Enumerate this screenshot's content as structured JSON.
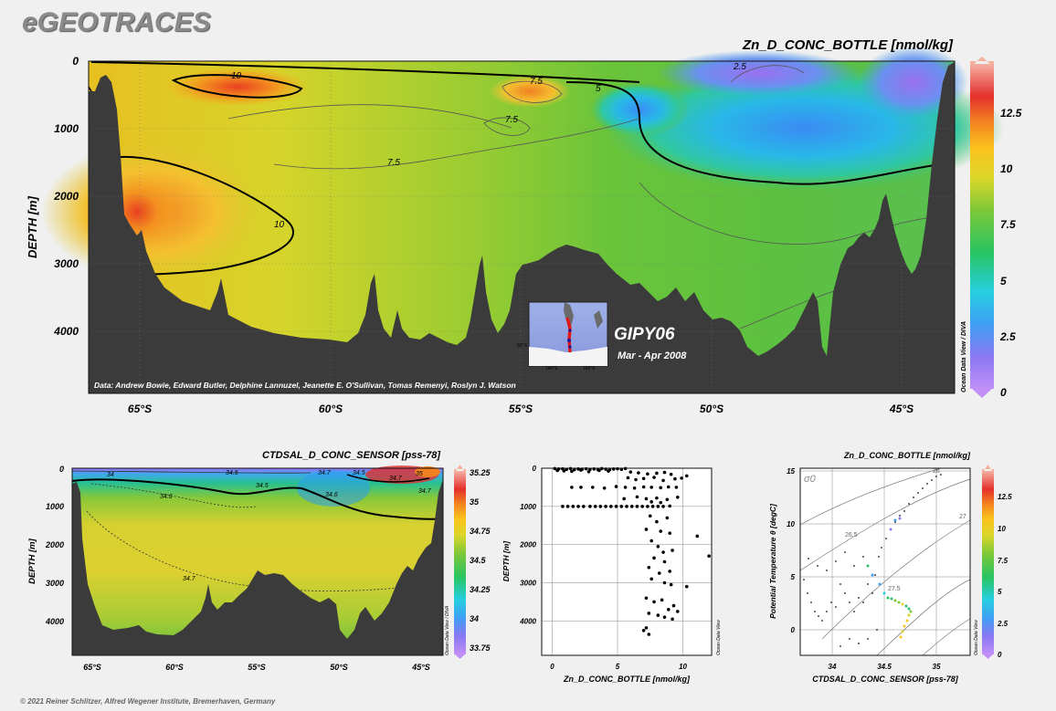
{
  "header": {
    "logo": "eGEOTRACES",
    "copyright": "© 2021 Reiner Schlitzer, Alfred Wegener Institute, Bremerhaven, Germany"
  },
  "colors": {
    "land": "#3a3a3a",
    "background": "#f0f0f0",
    "colorbar": [
      "#b07cf2",
      "#5a8cf5",
      "#2fd0e0",
      "#2ec46a",
      "#78c83c",
      "#d8d830",
      "#f8c020",
      "#f08020",
      "#e03030",
      "#f0a0a0"
    ]
  },
  "inset": {
    "cruise": "GIPY06",
    "dates": "Mar - Apr 2008",
    "tick_labels": [
      "60°S",
      "140°E",
      "160°E"
    ]
  },
  "watermark": "Ocean Data View / DIVA",
  "watermark_short": "Ocean Data View",
  "chart_data": [
    {
      "type": "heatmap",
      "title": "Zn_D_CONC_BOTTLE [nmol/kg]",
      "ylabel": "DEPTH [m]",
      "x_ticks": [
        "65°S",
        "60°S",
        "55°S",
        "50°S",
        "45°S"
      ],
      "x_values": [
        -65,
        -60,
        -55,
        -50,
        -45
      ],
      "xlim": [
        -67.2,
        -43.8
      ],
      "y_ticks": [
        "0",
        "1000",
        "2000",
        "3000",
        "4000"
      ],
      "ylim": [
        4900,
        0
      ],
      "colorbar_ticks": [
        "0",
        "2.5",
        "5",
        "7.5",
        "10",
        "12.5"
      ],
      "colorbar_range": [
        0,
        14.5
      ],
      "contour_labels": [
        "10",
        "7.5",
        "5",
        "7.5",
        "2.5",
        "7.5",
        "10"
      ],
      "credit": "Data: Andrew Bowie, Edward Butler, Delphine Lannuzel, Jeanette E. O'Sullivan, Tomas Remenyi, Roslyn J. Watson",
      "grid": true
    },
    {
      "type": "heatmap",
      "title": "CTDSAL_D_CONC_SENSOR [pss-78]",
      "ylabel": "DEPTH [m]",
      "x_ticks": [
        "65°S",
        "60°S",
        "55°S",
        "50°S",
        "45°S"
      ],
      "x_values": [
        -65,
        -60,
        -55,
        -50,
        -45
      ],
      "xlim": [
        -66.3,
        -43.8
      ],
      "y_ticks": [
        "0",
        "1000",
        "2000",
        "3000",
        "4000"
      ],
      "ylim": [
        4900,
        0
      ],
      "colorbar_ticks": [
        "33.75",
        "34",
        "34.25",
        "34.5",
        "34.75",
        "35",
        "35.25"
      ],
      "colorbar_range": [
        33.7,
        35.35
      ],
      "contour_labels": [
        "34",
        "34.6",
        "34.5",
        "34.5",
        "34.7",
        "34.7",
        "34.6",
        "34.5",
        "34.7",
        "34.7",
        "35"
      ],
      "grid": false
    },
    {
      "type": "scatter",
      "xlabel": "Zn_D_CONC_BOTTLE [nmol/kg]",
      "ylabel": "DEPTH [m]",
      "x_ticks": [
        "0",
        "5",
        "10"
      ],
      "y_ticks": [
        "0",
        "1000",
        "2000",
        "3000",
        "4000"
      ],
      "xlim": [
        -0.8,
        12.2
      ],
      "ylim": [
        4900,
        0
      ],
      "points": [
        [
          0.2,
          10
        ],
        [
          0.5,
          20
        ],
        [
          0.8,
          15
        ],
        [
          1.1,
          30
        ],
        [
          1.4,
          10
        ],
        [
          1.7,
          40
        ],
        [
          2.0,
          20
        ],
        [
          2.3,
          25
        ],
        [
          2.6,
          15
        ],
        [
          2.9,
          30
        ],
        [
          3.2,
          20
        ],
        [
          3.5,
          35
        ],
        [
          3.8,
          10
        ],
        [
          4.1,
          25
        ],
        [
          4.4,
          40
        ],
        [
          4.7,
          20
        ],
        [
          5.0,
          15
        ],
        [
          5.3,
          30
        ],
        [
          5.6,
          10
        ],
        [
          0.4,
          60
        ],
        [
          0.9,
          70
        ],
        [
          1.5,
          80
        ],
        [
          2.2,
          50
        ],
        [
          2.8,
          90
        ],
        [
          3.6,
          60
        ],
        [
          4.3,
          75
        ],
        [
          6.0,
          100
        ],
        [
          6.6,
          120
        ],
        [
          7.3,
          150
        ],
        [
          8.0,
          130
        ],
        [
          8.6,
          110
        ],
        [
          9.1,
          160
        ],
        [
          10.3,
          200
        ],
        [
          5.8,
          250
        ],
        [
          6.4,
          300
        ],
        [
          7.0,
          270
        ],
        [
          7.8,
          240
        ],
        [
          8.5,
          320
        ],
        [
          9.4,
          280
        ],
        [
          9.9,
          260
        ],
        [
          4.9,
          480
        ],
        [
          5.6,
          500
        ],
        [
          6.3,
          520
        ],
        [
          7.0,
          490
        ],
        [
          7.6,
          500
        ],
        [
          8.3,
          510
        ],
        [
          8.9,
          490
        ],
        [
          9.5,
          500
        ],
        [
          3.1,
          500
        ],
        [
          4.0,
          520
        ],
        [
          2.2,
          500
        ],
        [
          1.5,
          500
        ],
        [
          0.8,
          1000
        ],
        [
          1.2,
          1000
        ],
        [
          1.6,
          1000
        ],
        [
          2.0,
          1000
        ],
        [
          2.4,
          1000
        ],
        [
          2.9,
          1000
        ],
        [
          3.3,
          1000
        ],
        [
          3.7,
          1000
        ],
        [
          4.1,
          1000
        ],
        [
          4.5,
          1000
        ],
        [
          4.9,
          1000
        ],
        [
          5.3,
          1000
        ],
        [
          5.7,
          1000
        ],
        [
          6.1,
          1000
        ],
        [
          6.5,
          1000
        ],
        [
          6.9,
          1000
        ],
        [
          7.3,
          1000
        ],
        [
          7.7,
          1000
        ],
        [
          8.1,
          1000
        ],
        [
          8.5,
          1000
        ],
        [
          9.0,
          990
        ],
        [
          6.5,
          750
        ],
        [
          7.2,
          800
        ],
        [
          8.0,
          780
        ],
        [
          8.8,
          820
        ],
        [
          9.6,
          760
        ],
        [
          7.6,
          880
        ],
        [
          8.3,
          900
        ],
        [
          5.5,
          800
        ],
        [
          7.5,
          1250
        ],
        [
          8.0,
          1400
        ],
        [
          8.8,
          1300
        ],
        [
          7.2,
          1600
        ],
        [
          8.3,
          1650
        ],
        [
          9.0,
          1700
        ],
        [
          11.1,
          1780
        ],
        [
          7.6,
          1900
        ],
        [
          8.1,
          2050
        ],
        [
          8.5,
          2200
        ],
        [
          9.2,
          2150
        ],
        [
          12.0,
          2300
        ],
        [
          7.8,
          2350
        ],
        [
          8.6,
          2450
        ],
        [
          7.4,
          2600
        ],
        [
          8.2,
          2750
        ],
        [
          9.0,
          2700
        ],
        [
          7.6,
          2900
        ],
        [
          8.6,
          3000
        ],
        [
          9.1,
          3050
        ],
        [
          10.3,
          3100
        ],
        [
          7.2,
          3400
        ],
        [
          7.8,
          3500
        ],
        [
          8.4,
          3450
        ],
        [
          9.3,
          3600
        ],
        [
          9.6,
          3750
        ],
        [
          8.9,
          3700
        ],
        [
          7.4,
          3800
        ],
        [
          8.1,
          3850
        ],
        [
          9.2,
          3950
        ],
        [
          8.6,
          3900
        ],
        [
          7.0,
          4250
        ],
        [
          7.4,
          4350
        ],
        [
          7.2,
          4180
        ]
      ],
      "grid": true
    },
    {
      "type": "scatter",
      "title": "Zn_D_CONC_BOTTLE [nmol/kg]",
      "xlabel": "CTDSAL_D_CONC_SENSOR [pss-78]",
      "ylabel": "Potential Temperature θ [degC]",
      "x_ticks": [
        "34",
        "34.5",
        "35"
      ],
      "y_ticks": [
        "0",
        "5",
        "10",
        "15"
      ],
      "xlim": [
        33.65,
        35.35
      ],
      "ylim": [
        -2.5,
        15.3
      ],
      "colorbar_ticks": [
        "0",
        "2.5",
        "5",
        "7.5",
        "10",
        "12.5"
      ],
      "colorbar_range": [
        0,
        14.5
      ],
      "isopycnal_symbol": "σ0",
      "isopycnal_labels": [
        "26",
        "26.5",
        "27",
        "27.5"
      ],
      "grid": true
    }
  ]
}
